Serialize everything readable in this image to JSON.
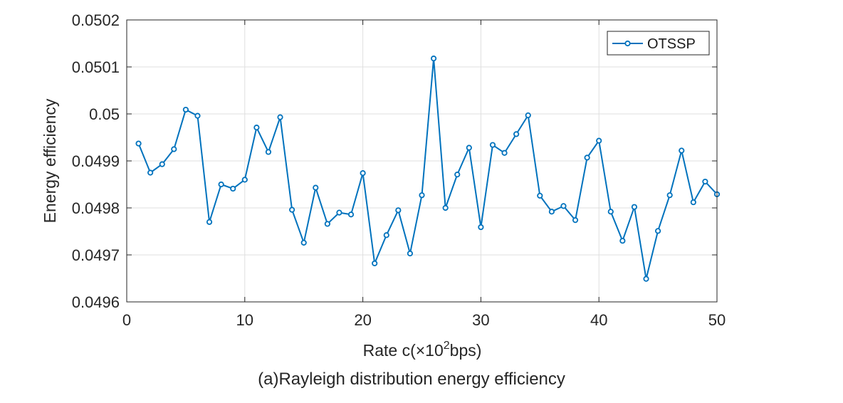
{
  "chart_data": {
    "type": "line",
    "caption": "(a)Rayleigh distribution energy efficiency",
    "xlabel_prefix": "Rate c(×10",
    "xlabel_sup": "2",
    "xlabel_suffix": "bps)",
    "ylabel": "Energy efficiency",
    "xlim": [
      0,
      50
    ],
    "ylim": [
      0.0496,
      0.0502
    ],
    "xticks": [
      0,
      10,
      20,
      30,
      40,
      50
    ],
    "xtick_labels": [
      "0",
      "10",
      "20",
      "30",
      "40",
      "50"
    ],
    "yticks": [
      0.0496,
      0.0497,
      0.0498,
      0.0499,
      0.05,
      0.0501,
      0.0502
    ],
    "ytick_labels": [
      "0.0496",
      "0.0497",
      "0.0498",
      "0.0499",
      "0.05",
      "0.0501",
      "0.0502"
    ],
    "grid": true,
    "legend_position": "top-right",
    "series": [
      {
        "name": "OTSSP",
        "color": "#0072BD",
        "marker": "circle",
        "x": [
          1,
          2,
          3,
          4,
          5,
          6,
          7,
          8,
          9,
          10,
          11,
          12,
          13,
          14,
          15,
          16,
          17,
          18,
          19,
          20,
          21,
          22,
          23,
          24,
          25,
          26,
          27,
          28,
          29,
          30,
          31,
          32,
          33,
          34,
          35,
          36,
          37,
          38,
          39,
          40,
          41,
          42,
          43,
          44,
          45,
          46,
          47,
          48,
          49,
          50
        ],
        "y": [
          0.049937,
          0.049875,
          0.049893,
          0.049925,
          0.050009,
          0.049996,
          0.04977,
          0.04985,
          0.049841,
          0.04986,
          0.049971,
          0.049919,
          0.049993,
          0.049796,
          0.049726,
          0.049843,
          0.049766,
          0.04979,
          0.049786,
          0.049874,
          0.049682,
          0.049742,
          0.049795,
          0.049703,
          0.049827,
          0.050118,
          0.0498,
          0.049871,
          0.049928,
          0.049759,
          0.049934,
          0.049917,
          0.049957,
          0.049997,
          0.049826,
          0.049792,
          0.049804,
          0.049774,
          0.049907,
          0.049943,
          0.049792,
          0.04973,
          0.049802,
          0.049649,
          0.049751,
          0.049827,
          0.049922,
          0.049812,
          0.049856,
          0.049829
        ]
      }
    ]
  }
}
